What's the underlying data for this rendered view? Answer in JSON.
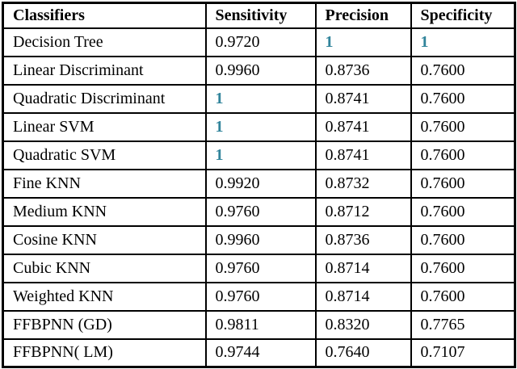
{
  "table": {
    "name": "classifier-performance-metrics",
    "headers": [
      "Classifiers",
      "Sensitivity",
      "Precision",
      "Specificity"
    ],
    "rows": [
      [
        "Decision Tree",
        "0.9720",
        "1",
        "1"
      ],
      [
        "Linear Discriminant",
        "0.9960",
        "0.8736",
        "0.7600"
      ],
      [
        "Quadratic Discriminant",
        "1",
        "0.8741",
        "0.7600"
      ],
      [
        "Linear SVM",
        "1",
        "0.8741",
        "0.7600"
      ],
      [
        "Quadratic SVM",
        "1",
        "0.8741",
        "0.7600"
      ],
      [
        "Fine KNN",
        "0.9920",
        "0.8732",
        "0.7600"
      ],
      [
        "Medium KNN",
        "0.9760",
        "0.8712",
        "0.7600"
      ],
      [
        "Cosine KNN",
        "0.9960",
        "0.8736",
        "0.7600"
      ],
      [
        "Cubic KNN",
        "0.9760",
        "0.8714",
        "0.7600"
      ],
      [
        "Weighted KNN",
        "0.9760",
        "0.8714",
        "0.7600"
      ],
      [
        "FFBPNN (GD)",
        "0.9811",
        "0.8320",
        "0.7765"
      ],
      [
        "FFBPNN( LM)",
        "0.9744",
        "0.7640",
        "0.7107"
      ]
    ],
    "best_value": "1",
    "best_value_color": "#31849B",
    "border_color": "#000000",
    "text_color": "#000000",
    "background_color": "#ffffff"
  }
}
